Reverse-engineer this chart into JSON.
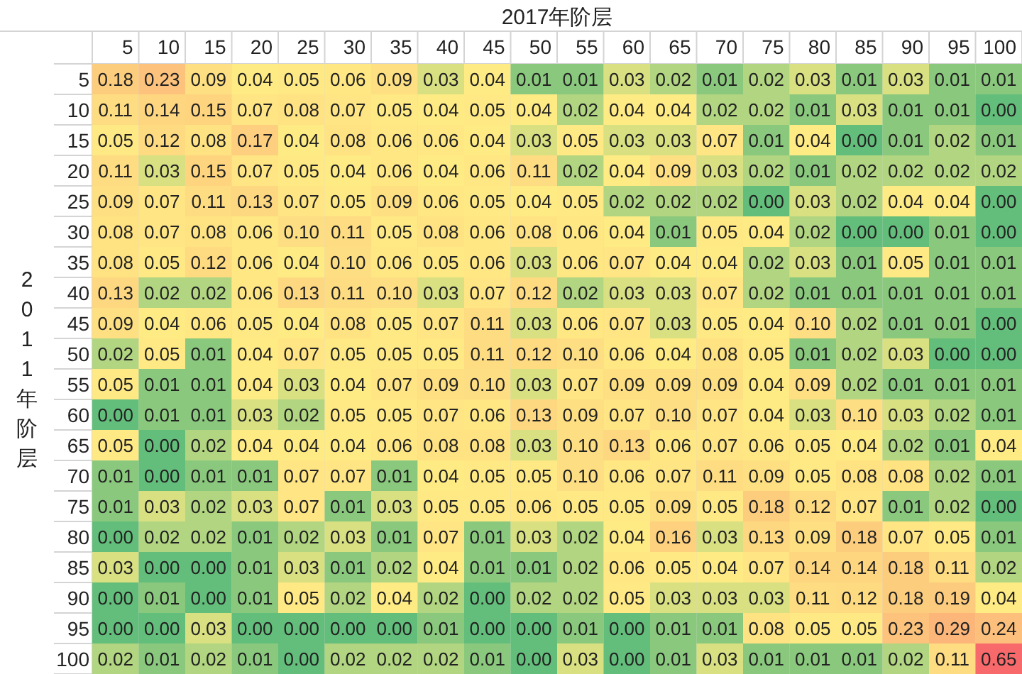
{
  "chart_data": {
    "type": "heatmap",
    "xlabel": "2017年阶层",
    "ylabel": "2011年阶层",
    "categories": [
      "5",
      "10",
      "15",
      "20",
      "25",
      "30",
      "35",
      "40",
      "45",
      "50",
      "55",
      "60",
      "65",
      "70",
      "75",
      "80",
      "85",
      "90",
      "95",
      "100"
    ],
    "y_categories": [
      "5",
      "10",
      "15",
      "20",
      "25",
      "30",
      "35",
      "40",
      "45",
      "50",
      "55",
      "60",
      "65",
      "70",
      "75",
      "80",
      "85",
      "90",
      "95",
      "100"
    ],
    "cells": [
      [
        0.18,
        0.23,
        0.09,
        0.04,
        0.05,
        0.06,
        0.09,
        0.03,
        0.04,
        0.01,
        0.01,
        0.03,
        0.02,
        0.01,
        0.02,
        0.03,
        0.01,
        0.03,
        0.01,
        0.01
      ],
      [
        0.11,
        0.14,
        0.15,
        0.07,
        0.08,
        0.07,
        0.05,
        0.04,
        0.05,
        0.04,
        0.02,
        0.04,
        0.04,
        0.02,
        0.02,
        0.01,
        0.03,
        0.01,
        0.01,
        0.0
      ],
      [
        0.05,
        0.12,
        0.08,
        0.17,
        0.04,
        0.08,
        0.06,
        0.06,
        0.04,
        0.03,
        0.05,
        0.03,
        0.03,
        0.07,
        0.01,
        0.04,
        0.0,
        0.01,
        0.02,
        0.01
      ],
      [
        0.11,
        0.03,
        0.15,
        0.07,
        0.05,
        0.04,
        0.06,
        0.04,
        0.06,
        0.11,
        0.02,
        0.04,
        0.09,
        0.03,
        0.02,
        0.01,
        0.02,
        0.02,
        0.02,
        0.02
      ],
      [
        0.09,
        0.07,
        0.11,
        0.13,
        0.07,
        0.05,
        0.09,
        0.06,
        0.05,
        0.04,
        0.05,
        0.02,
        0.02,
        0.02,
        0.0,
        0.03,
        0.02,
        0.04,
        0.04,
        0.0
      ],
      [
        0.08,
        0.07,
        0.08,
        0.06,
        0.1,
        0.11,
        0.05,
        0.08,
        0.06,
        0.08,
        0.06,
        0.04,
        0.01,
        0.05,
        0.04,
        0.02,
        0.0,
        0.0,
        0.01,
        0.0
      ],
      [
        0.08,
        0.05,
        0.12,
        0.06,
        0.04,
        0.1,
        0.06,
        0.05,
        0.06,
        0.03,
        0.06,
        0.07,
        0.04,
        0.04,
        0.02,
        0.03,
        0.01,
        0.05,
        0.01,
        0.01
      ],
      [
        0.13,
        0.02,
        0.02,
        0.06,
        0.13,
        0.11,
        0.1,
        0.03,
        0.07,
        0.12,
        0.02,
        0.03,
        0.03,
        0.07,
        0.02,
        0.01,
        0.01,
        0.01,
        0.01,
        0.01
      ],
      [
        0.09,
        0.04,
        0.06,
        0.05,
        0.04,
        0.08,
        0.05,
        0.07,
        0.11,
        0.03,
        0.06,
        0.07,
        0.03,
        0.05,
        0.04,
        0.1,
        0.02,
        0.01,
        0.01,
        0.0
      ],
      [
        0.02,
        0.05,
        0.01,
        0.04,
        0.07,
        0.05,
        0.05,
        0.05,
        0.11,
        0.12,
        0.1,
        0.06,
        0.04,
        0.08,
        0.05,
        0.01,
        0.02,
        0.03,
        0.0,
        0.0
      ],
      [
        0.05,
        0.01,
        0.01,
        0.04,
        0.03,
        0.04,
        0.07,
        0.09,
        0.1,
        0.03,
        0.07,
        0.09,
        0.09,
        0.09,
        0.04,
        0.09,
        0.02,
        0.01,
        0.01,
        0.01
      ],
      [
        0.0,
        0.01,
        0.01,
        0.03,
        0.02,
        0.05,
        0.05,
        0.07,
        0.06,
        0.13,
        0.09,
        0.07,
        0.1,
        0.07,
        0.04,
        0.03,
        0.1,
        0.03,
        0.02,
        0.01
      ],
      [
        0.05,
        0.0,
        0.02,
        0.04,
        0.04,
        0.04,
        0.06,
        0.08,
        0.08,
        0.03,
        0.1,
        0.13,
        0.06,
        0.07,
        0.06,
        0.05,
        0.04,
        0.02,
        0.01,
        0.04
      ],
      [
        0.01,
        0.0,
        0.01,
        0.01,
        0.07,
        0.07,
        0.01,
        0.04,
        0.05,
        0.05,
        0.1,
        0.06,
        0.07,
        0.11,
        0.09,
        0.05,
        0.08,
        0.08,
        0.02,
        0.01
      ],
      [
        0.01,
        0.03,
        0.02,
        0.03,
        0.07,
        0.01,
        0.03,
        0.05,
        0.05,
        0.06,
        0.05,
        0.05,
        0.09,
        0.05,
        0.18,
        0.12,
        0.07,
        0.01,
        0.02,
        0.0
      ],
      [
        0.0,
        0.02,
        0.02,
        0.01,
        0.02,
        0.03,
        0.01,
        0.07,
        0.01,
        0.03,
        0.02,
        0.04,
        0.16,
        0.03,
        0.13,
        0.09,
        0.18,
        0.07,
        0.05,
        0.01
      ],
      [
        0.03,
        0.0,
        0.0,
        0.01,
        0.03,
        0.01,
        0.02,
        0.04,
        0.01,
        0.01,
        0.02,
        0.06,
        0.05,
        0.04,
        0.07,
        0.14,
        0.14,
        0.18,
        0.11,
        0.02
      ],
      [
        0.0,
        0.01,
        0.0,
        0.01,
        0.05,
        0.02,
        0.04,
        0.02,
        0.0,
        0.02,
        0.02,
        0.05,
        0.03,
        0.03,
        0.03,
        0.11,
        0.12,
        0.18,
        0.19,
        0.04
      ],
      [
        0.0,
        0.0,
        0.03,
        0.0,
        0.0,
        0.0,
        0.0,
        0.01,
        0.0,
        0.0,
        0.01,
        0.0,
        0.01,
        0.01,
        0.08,
        0.05,
        0.05,
        0.23,
        0.29,
        0.24
      ],
      [
        0.02,
        0.01,
        0.02,
        0.01,
        0.0,
        0.02,
        0.02,
        0.02,
        0.01,
        0.0,
        0.03,
        0.0,
        0.01,
        0.03,
        0.01,
        0.01,
        0.01,
        0.02,
        0.11,
        0.65
      ]
    ],
    "cell_labels": [
      [
        "0.18",
        "0.23",
        "0.09",
        "0.04",
        "0.05",
        "0.06",
        "0.09",
        "0.03",
        "0.04",
        "0.01",
        "0.01",
        "0.03",
        "0.02",
        "0.01",
        "0.02",
        "0.03",
        "0.01",
        "0.03",
        "0.01",
        "0.01"
      ],
      [
        "0.11",
        "0.14",
        "0.15",
        "0.07",
        "0.08",
        "0.07",
        "0.05",
        "0.04",
        "0.05",
        "0.04",
        "0.02",
        "0.04",
        "0.04",
        "0.02",
        "0.02",
        "0.01",
        "0.03",
        "0.01",
        "0.01",
        "0.00"
      ],
      [
        "0.05",
        "0.12",
        "0.08",
        "0.17",
        "0.04",
        "0.08",
        "0.06",
        "0.06",
        "0.04",
        "0.03",
        "0.05",
        "0.03",
        "0.03",
        "0.07",
        "0.01",
        "0.04",
        "0.00",
        "0.01",
        "0.02",
        "0.01"
      ],
      [
        "0.11",
        "0.03",
        "0.15",
        "0.07",
        "0.05",
        "0.04",
        "0.06",
        "0.04",
        "0.06",
        "0.11",
        "0.02",
        "0.04",
        "0.09",
        "0.03",
        "0.02",
        "0.01",
        "0.02",
        "0.02",
        "0.02",
        "0.02"
      ],
      [
        "0.09",
        "0.07",
        "0.11",
        "0.13",
        "0.07",
        "0.05",
        "0.09",
        "0.06",
        "0.05",
        "0.04",
        "0.05",
        "0.02",
        "0.02",
        "0.02",
        "0.00",
        "0.03",
        "0.02",
        "0.04",
        "0.04",
        "0.00"
      ],
      [
        "0.08",
        "0.07",
        "0.08",
        "0.06",
        "0.10",
        "0.11",
        "0.05",
        "0.08",
        "0.06",
        "0.08",
        "0.06",
        "0.04",
        "0.01",
        "0.05",
        "0.04",
        "0.02",
        "0.00",
        "0.00",
        "0.01",
        "0.00"
      ],
      [
        "0.08",
        "0.05",
        "0.12",
        "0.06",
        "0.04",
        "0.10",
        "0.06",
        "0.05",
        "0.06",
        "0.03",
        "0.06",
        "0.07",
        "0.04",
        "0.04",
        "0.02",
        "0.03",
        "0.01",
        "0.05",
        "0.01",
        "0.01"
      ],
      [
        "0.13",
        "0.02",
        "0.02",
        "0.06",
        "0.13",
        "0.11",
        "0.10",
        "0.03",
        "0.07",
        "0.12",
        "0.02",
        "0.03",
        "0.03",
        "0.07",
        "0.02",
        "0.01",
        "0.01",
        "0.01",
        "0.01",
        "0.01"
      ],
      [
        "0.09",
        "0.04",
        "0.06",
        "0.05",
        "0.04",
        "0.08",
        "0.05",
        "0.07",
        "0.11",
        "0.03",
        "0.06",
        "0.07",
        "0.03",
        "0.05",
        "0.04",
        "0.10",
        "0.02",
        "0.01",
        "0.01",
        "0.00"
      ],
      [
        "0.02",
        "0.05",
        "0.01",
        "0.04",
        "0.07",
        "0.05",
        "0.05",
        "0.05",
        "0.11",
        "0.12",
        "0.10",
        "0.06",
        "0.04",
        "0.08",
        "0.05",
        "0.01",
        "0.02",
        "0.03",
        "0.00",
        "0.00"
      ],
      [
        "0.05",
        "0.01",
        "0.01",
        "0.04",
        "0.03",
        "0.04",
        "0.07",
        "0.09",
        "0.10",
        "0.03",
        "0.07",
        "0.09",
        "0.09",
        "0.09",
        "0.04",
        "0.09",
        "0.02",
        "0.01",
        "0.01",
        "0.01"
      ],
      [
        "0.00",
        "0.01",
        "0.01",
        "0.03",
        "0.02",
        "0.05",
        "0.05",
        "0.07",
        "0.06",
        "0.13",
        "0.09",
        "0.07",
        "0.10",
        "0.07",
        "0.04",
        "0.03",
        "0.10",
        "0.03",
        "0.02",
        "0.01"
      ],
      [
        "0.05",
        "0.00",
        "0.02",
        "0.04",
        "0.04",
        "0.04",
        "0.06",
        "0.08",
        "0.08",
        "0.03",
        "0.10",
        "0.13",
        "0.06",
        "0.07",
        "0.06",
        "0.05",
        "0.04",
        "0.02",
        "0.01",
        "0.04"
      ],
      [
        "0.01",
        "0.00",
        "0.01",
        "0.01",
        "0.07",
        "0.07",
        "0.01",
        "0.04",
        "0.05",
        "0.05",
        "0.10",
        "0.06",
        "0.07",
        "0.11",
        "0.09",
        "0.05",
        "0.08",
        "0.08",
        "0.02",
        "0.01"
      ],
      [
        "0.01",
        "0.03",
        "0.02",
        "0.03",
        "0.07",
        "0.01",
        "0.03",
        "0.05",
        "0.05",
        "0.06",
        "0.05",
        "0.05",
        "0.09",
        "0.05",
        "0.18",
        "0.12",
        "0.07",
        "0.01",
        "0.02",
        "0.00"
      ],
      [
        "0.00",
        "0.02",
        "0.02",
        "0.01",
        "0.02",
        "0.03",
        "0.01",
        "0.07",
        "0.01",
        "0.03",
        "0.02",
        "0.04",
        "0.16",
        "0.03",
        "0.13",
        "0.09",
        "0.18",
        "0.07",
        "0.05",
        "0.01"
      ],
      [
        "0.03",
        "0.00",
        "0.00",
        "0.01",
        "0.03",
        "0.01",
        "0.02",
        "0.04",
        "0.01",
        "0.01",
        "0.02",
        "0.06",
        "0.05",
        "0.04",
        "0.07",
        "0.14",
        "0.14",
        "0.18",
        "0.11",
        "0.02"
      ],
      [
        "0.00",
        "0.01",
        "0.00",
        "0.01",
        "0.05",
        "0.02",
        "0.04",
        "0.02",
        "0.00",
        "0.02",
        "0.02",
        "0.05",
        "0.03",
        "0.03",
        "0.03",
        "0.11",
        "0.12",
        "0.18",
        "0.19",
        "0.04"
      ],
      [
        "0.00",
        "0.00",
        "0.03",
        "0.00",
        "0.00",
        "0.00",
        "0.00",
        "0.01",
        "0.00",
        "0.00",
        "0.01",
        "0.00",
        "0.01",
        "0.01",
        "0.08",
        "0.05",
        "0.05",
        "0.23",
        "0.29",
        "0.24"
      ],
      [
        "0.02",
        "0.01",
        "0.02",
        "0.01",
        "0.00",
        "0.02",
        "0.02",
        "0.02",
        "0.01",
        "0.00",
        "0.03",
        "0.00",
        "0.01",
        "0.03",
        "0.01",
        "0.01",
        "0.01",
        "0.02",
        "0.11",
        "0.65"
      ]
    ]
  }
}
